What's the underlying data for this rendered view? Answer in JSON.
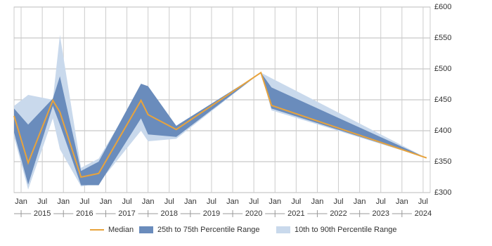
{
  "chart_data": {
    "type": "line-band",
    "x": [
      "2014-11",
      "2015-03",
      "2015-10",
      "2015-12",
      "2016-06",
      "2016-11",
      "2017-11",
      "2018-01",
      "2018-09",
      "2020-09",
      "2020-12",
      "2024-08"
    ],
    "series": [
      {
        "name": "10th to 90th Percentile Range",
        "color": "#c9d9ec",
        "kind": "band",
        "lower": [
          390,
          305,
          420,
          370,
          310,
          315,
          400,
          383,
          387,
          494,
          433,
          356
        ],
        "upper": [
          440,
          458,
          450,
          555,
          340,
          355,
          470,
          468,
          405,
          494,
          485,
          356
        ]
      },
      {
        "name": "25th to 75th Percentile Range",
        "color": "#6a8cbc",
        "kind": "band",
        "lower": [
          397,
          313,
          440,
          410,
          312,
          312,
          420,
          394,
          390,
          494,
          436,
          356
        ],
        "upper": [
          436,
          410,
          452,
          488,
          335,
          350,
          476,
          472,
          408,
          494,
          470,
          356
        ]
      },
      {
        "name": "Median",
        "color": "#e8a33c",
        "kind": "line",
        "values": [
          424,
          348,
          449,
          430,
          325,
          331,
          449,
          426,
          402,
          494,
          441,
          356
        ]
      }
    ],
    "legend_order": [
      2,
      1,
      0
    ],
    "xlim": [
      "2014-11",
      "2024-09"
    ],
    "xticks": [
      {
        "value": "2015-01",
        "label": "Jan"
      },
      {
        "value": "2015-07",
        "label": "Jul"
      },
      {
        "value": "2016-01",
        "label": "Jan"
      },
      {
        "value": "2016-07",
        "label": "Jul"
      },
      {
        "value": "2017-01",
        "label": "Jan"
      },
      {
        "value": "2017-07",
        "label": "Jul"
      },
      {
        "value": "2018-01",
        "label": "Jan"
      },
      {
        "value": "2018-07",
        "label": "Jul"
      },
      {
        "value": "2019-01",
        "label": "Jan"
      },
      {
        "value": "2019-07",
        "label": "Jul"
      },
      {
        "value": "2020-01",
        "label": "Jan"
      },
      {
        "value": "2020-07",
        "label": "Jul"
      },
      {
        "value": "2021-01",
        "label": "Jan"
      },
      {
        "value": "2021-07",
        "label": "Jul"
      },
      {
        "value": "2022-01",
        "label": "Jan"
      },
      {
        "value": "2022-07",
        "label": "Jul"
      },
      {
        "value": "2023-01",
        "label": "Jan"
      },
      {
        "value": "2023-07",
        "label": "Jul"
      },
      {
        "value": "2024-01",
        "label": "Jan"
      },
      {
        "value": "2024-07",
        "label": "Jul"
      }
    ],
    "year_labels": [
      2015,
      2016,
      2017,
      2018,
      2019,
      2020,
      2021,
      2022,
      2023,
      2024
    ],
    "ylim": [
      300,
      600
    ],
    "yticks": [
      {
        "value": 300,
        "label": "£300"
      },
      {
        "value": 350,
        "label": "£350"
      },
      {
        "value": 400,
        "label": "£400"
      },
      {
        "value": 450,
        "label": "£450"
      },
      {
        "value": 500,
        "label": "£500"
      },
      {
        "value": 550,
        "label": "£550"
      },
      {
        "value": 600,
        "label": "£600"
      }
    ],
    "grid": true
  }
}
